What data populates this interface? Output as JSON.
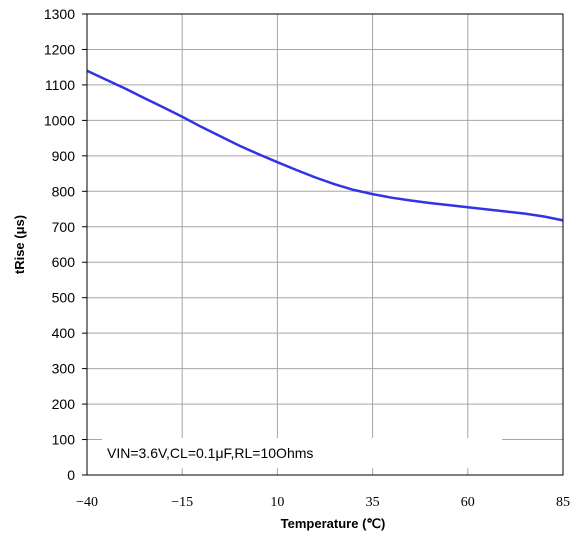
{
  "chart_data": {
    "type": "line",
    "xlabel": "Temperature (℃)",
    "ylabel": "tRise (μs)",
    "xlim": [
      -40,
      85
    ],
    "ylim": [
      0,
      1300
    ],
    "x_ticks": [
      -40,
      -15,
      10,
      35,
      60,
      85
    ],
    "x_tick_labels": [
      "−40",
      "−15",
      "10",
      "35",
      "60",
      "85"
    ],
    "y_ticks": [
      0,
      100,
      200,
      300,
      400,
      500,
      600,
      700,
      800,
      900,
      1000,
      1100,
      1200,
      1300
    ],
    "y_tick_labels": [
      "0",
      "100",
      "200",
      "300",
      "400",
      "500",
      "600",
      "700",
      "800",
      "900",
      "1000",
      "1100",
      "1200",
      "1300"
    ],
    "grid": true,
    "annotation": "VIN=3.6V,CL=0.1μF,RL=10Ohms",
    "line_color": "#3333e6",
    "series": [
      {
        "x": [
          -40,
          -35,
          -30,
          -25,
          -20,
          -15,
          -10,
          -5,
          0,
          5,
          10,
          15,
          20,
          25,
          30,
          35,
          40,
          45,
          50,
          55,
          60,
          65,
          70,
          75,
          80,
          85
        ],
        "values": [
          1140,
          1115,
          1090,
          1063,
          1037,
          1010,
          982,
          955,
          929,
          905,
          882,
          860,
          839,
          820,
          804,
          792,
          782,
          774,
          767,
          761,
          755,
          749,
          743,
          737,
          729,
          718
        ]
      }
    ]
  }
}
